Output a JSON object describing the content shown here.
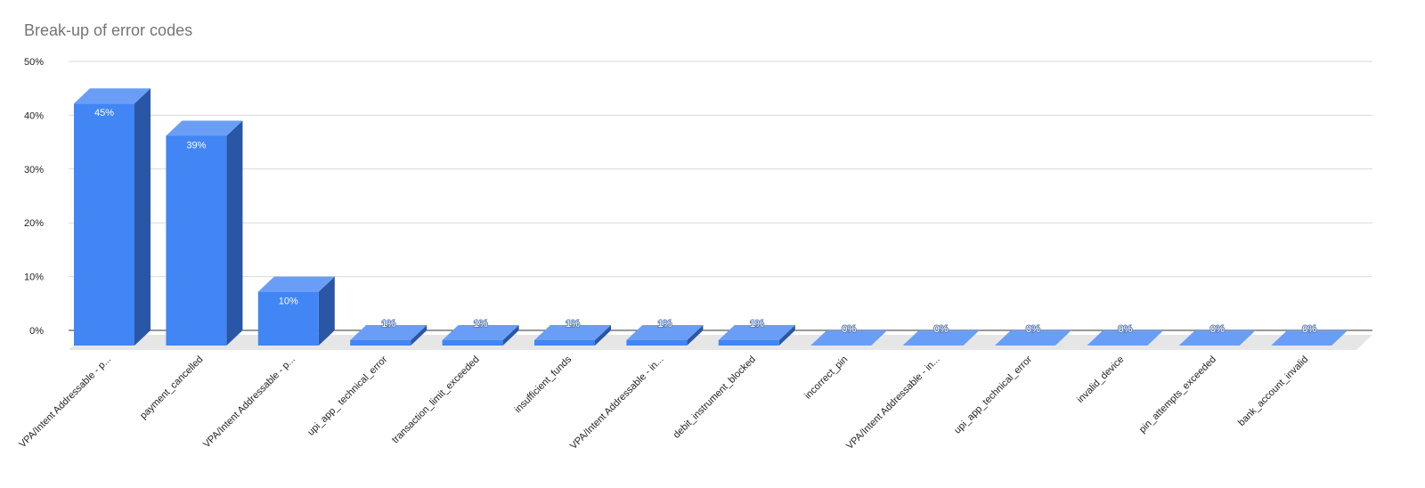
{
  "chart_data": {
    "type": "bar",
    "title": "Break-up of error codes",
    "xlabel": "",
    "ylabel": "",
    "ylim": [
      0,
      50
    ],
    "y_tick_labels": [
      "0%",
      "10%",
      "20%",
      "30%",
      "40%",
      "50%"
    ],
    "grid": true,
    "legend": "none",
    "style": "3d",
    "categories": [
      "VPA/Intent Addressable - p...",
      "payment_cancelled",
      "VPA/Intent Addressable - p...",
      "upi_app_ technical_error",
      "transaction_limit_exceeded",
      "insufficient_funds",
      "VPA/Intent Addressable - in...",
      "debit_instrument_blocked",
      "incorrect_pin",
      "VPA/Intent Addressable - in...",
      "upi_app_technical_error",
      "invalid_device",
      "pin_attempts_exceeded",
      "bank_account_invalid"
    ],
    "values": [
      45,
      39,
      10,
      1,
      1,
      1,
      1,
      1,
      0,
      0,
      0,
      0,
      0,
      0
    ],
    "data_labels": [
      "45%",
      "39%",
      "10%",
      "1%",
      "1%",
      "1%",
      "1%",
      "1%",
      "0%",
      "0%",
      "0%",
      "0%",
      "0%",
      "0%"
    ],
    "colors": {
      "front": "#4285f4",
      "top": "#6a9ef6",
      "side": "#2a56a6",
      "floor": "#e6e6e6",
      "grid": "#d9d9d9",
      "axis": "#333333"
    }
  }
}
